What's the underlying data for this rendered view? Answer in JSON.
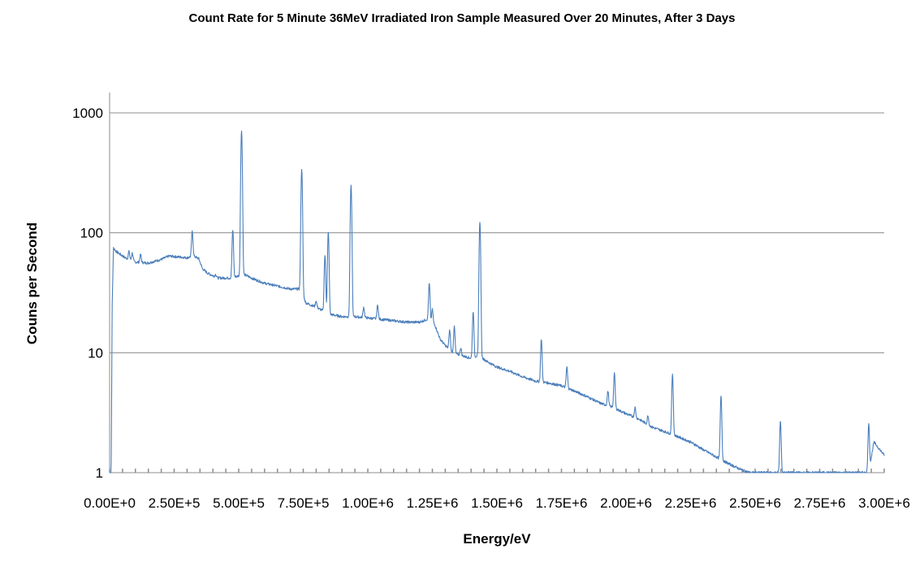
{
  "chart_data": {
    "type": "line",
    "title": "Count Rate for 5 Minute 36MeV Irradiated Iron Sample Measured Over 20 Minutes, After 3 Days",
    "xlabel": "Energy/eV",
    "ylabel": "Couns per Second",
    "x_scale": "linear",
    "y_scale": "log",
    "xlim": [
      0,
      3000000
    ],
    "ylim": [
      1,
      1000
    ],
    "grid": "horizontal major gridlines",
    "legend": "none",
    "series_color": "#4a7ebb",
    "x_ticks": [
      {
        "value": 0,
        "label": "0.00E+0"
      },
      {
        "value": 250000,
        "label": "2.50E+5"
      },
      {
        "value": 500000,
        "label": "5.00E+5"
      },
      {
        "value": 750000,
        "label": "7.50E+5"
      },
      {
        "value": 1000000,
        "label": "1.00E+6"
      },
      {
        "value": 1250000,
        "label": "1.25E+6"
      },
      {
        "value": 1500000,
        "label": "1.50E+6"
      },
      {
        "value": 1750000,
        "label": "1.75E+6"
      },
      {
        "value": 2000000,
        "label": "2.00E+6"
      },
      {
        "value": 2250000,
        "label": "2.25E+6"
      },
      {
        "value": 2500000,
        "label": "2.50E+6"
      },
      {
        "value": 2750000,
        "label": "2.75E+6"
      },
      {
        "value": 3000000,
        "label": "3.00E+6"
      }
    ],
    "y_ticks": [
      {
        "value": 1,
        "label": "1"
      },
      {
        "value": 10,
        "label": "10"
      },
      {
        "value": 100,
        "label": "100"
      },
      {
        "value": 1000,
        "label": "1000"
      }
    ],
    "background": [
      [
        0,
        1
      ],
      [
        6000,
        1
      ],
      [
        10000,
        25
      ],
      [
        15000,
        75
      ],
      [
        25000,
        70
      ],
      [
        60000,
        62
      ],
      [
        100000,
        57
      ],
      [
        150000,
        56
      ],
      [
        200000,
        60
      ],
      [
        230000,
        64
      ],
      [
        300000,
        62
      ],
      [
        325000,
        64
      ],
      [
        345000,
        61
      ],
      [
        360000,
        50
      ],
      [
        380000,
        46
      ],
      [
        420000,
        42
      ],
      [
        470000,
        42
      ],
      [
        520000,
        45
      ],
      [
        560000,
        41
      ],
      [
        600000,
        38
      ],
      [
        650000,
        36
      ],
      [
        700000,
        34
      ],
      [
        740000,
        34
      ],
      [
        760000,
        26
      ],
      [
        800000,
        24
      ],
      [
        850000,
        21
      ],
      [
        900000,
        20
      ],
      [
        950000,
        20
      ],
      [
        1000000,
        19.5
      ],
      [
        1050000,
        19
      ],
      [
        1100000,
        18.5
      ],
      [
        1150000,
        18
      ],
      [
        1200000,
        18
      ],
      [
        1230000,
        19
      ],
      [
        1260000,
        17
      ],
      [
        1280000,
        13
      ],
      [
        1300000,
        11.5
      ],
      [
        1330000,
        10
      ],
      [
        1360000,
        9.5
      ],
      [
        1400000,
        9
      ],
      [
        1430000,
        9.5
      ],
      [
        1460000,
        8.5
      ],
      [
        1500000,
        7.6
      ],
      [
        1550000,
        7
      ],
      [
        1600000,
        6.3
      ],
      [
        1650000,
        5.8
      ],
      [
        1700000,
        5.6
      ],
      [
        1750000,
        5.3
      ],
      [
        1800000,
        4.8
      ],
      [
        1850000,
        4.3
      ],
      [
        1900000,
        3.8
      ],
      [
        1950000,
        3.5
      ],
      [
        2000000,
        3.1
      ],
      [
        2050000,
        2.8
      ],
      [
        2100000,
        2.4
      ],
      [
        2150000,
        2.2
      ],
      [
        2200000,
        2.0
      ],
      [
        2250000,
        1.8
      ],
      [
        2300000,
        1.55
      ],
      [
        2350000,
        1.35
      ],
      [
        2400000,
        1.18
      ],
      [
        2450000,
        1.05
      ],
      [
        2480000,
        1.0
      ],
      [
        2600000,
        1.0
      ],
      [
        2940000,
        1.0
      ],
      [
        2960000,
        1.8
      ],
      [
        3000000,
        1.4
      ]
    ],
    "peaks": [
      {
        "energy": 75000,
        "height": 70
      },
      {
        "energy": 88000,
        "height": 68
      },
      {
        "energy": 120000,
        "height": 66
      },
      {
        "energy": 320000,
        "height": 103
      },
      {
        "energy": 411000,
        "height": 45
      },
      {
        "energy": 477000,
        "height": 106
      },
      {
        "energy": 511000,
        "height": 710
      },
      {
        "energy": 570000,
        "height": 38
      },
      {
        "energy": 744000,
        "height": 340
      },
      {
        "energy": 800000,
        "height": 27
      },
      {
        "energy": 834000,
        "height": 65
      },
      {
        "energy": 847000,
        "height": 102
      },
      {
        "energy": 935000,
        "height": 250
      },
      {
        "energy": 984000,
        "height": 24
      },
      {
        "energy": 1038000,
        "height": 25
      },
      {
        "energy": 1238000,
        "height": 38
      },
      {
        "energy": 1250000,
        "height": 23
      },
      {
        "energy": 1317000,
        "height": 15.5
      },
      {
        "energy": 1335000,
        "height": 16.5
      },
      {
        "energy": 1360000,
        "height": 11
      },
      {
        "energy": 1408000,
        "height": 22
      },
      {
        "energy": 1434000,
        "height": 123
      },
      {
        "energy": 1672000,
        "height": 13
      },
      {
        "energy": 1771000,
        "height": 7.6
      },
      {
        "energy": 1830000,
        "height": 4.5
      },
      {
        "energy": 1930000,
        "height": 4.8
      },
      {
        "energy": 1955000,
        "height": 6.8
      },
      {
        "energy": 2035000,
        "height": 3.5
      },
      {
        "energy": 2085000,
        "height": 3.0
      },
      {
        "energy": 2180000,
        "height": 6.6
      },
      {
        "energy": 2230000,
        "height": 1.8
      },
      {
        "energy": 2271000,
        "height": 1.7
      },
      {
        "energy": 2368000,
        "height": 4.4
      },
      {
        "energy": 2598000,
        "height": 2.7
      },
      {
        "energy": 2940000,
        "height": 2.55
      }
    ]
  }
}
